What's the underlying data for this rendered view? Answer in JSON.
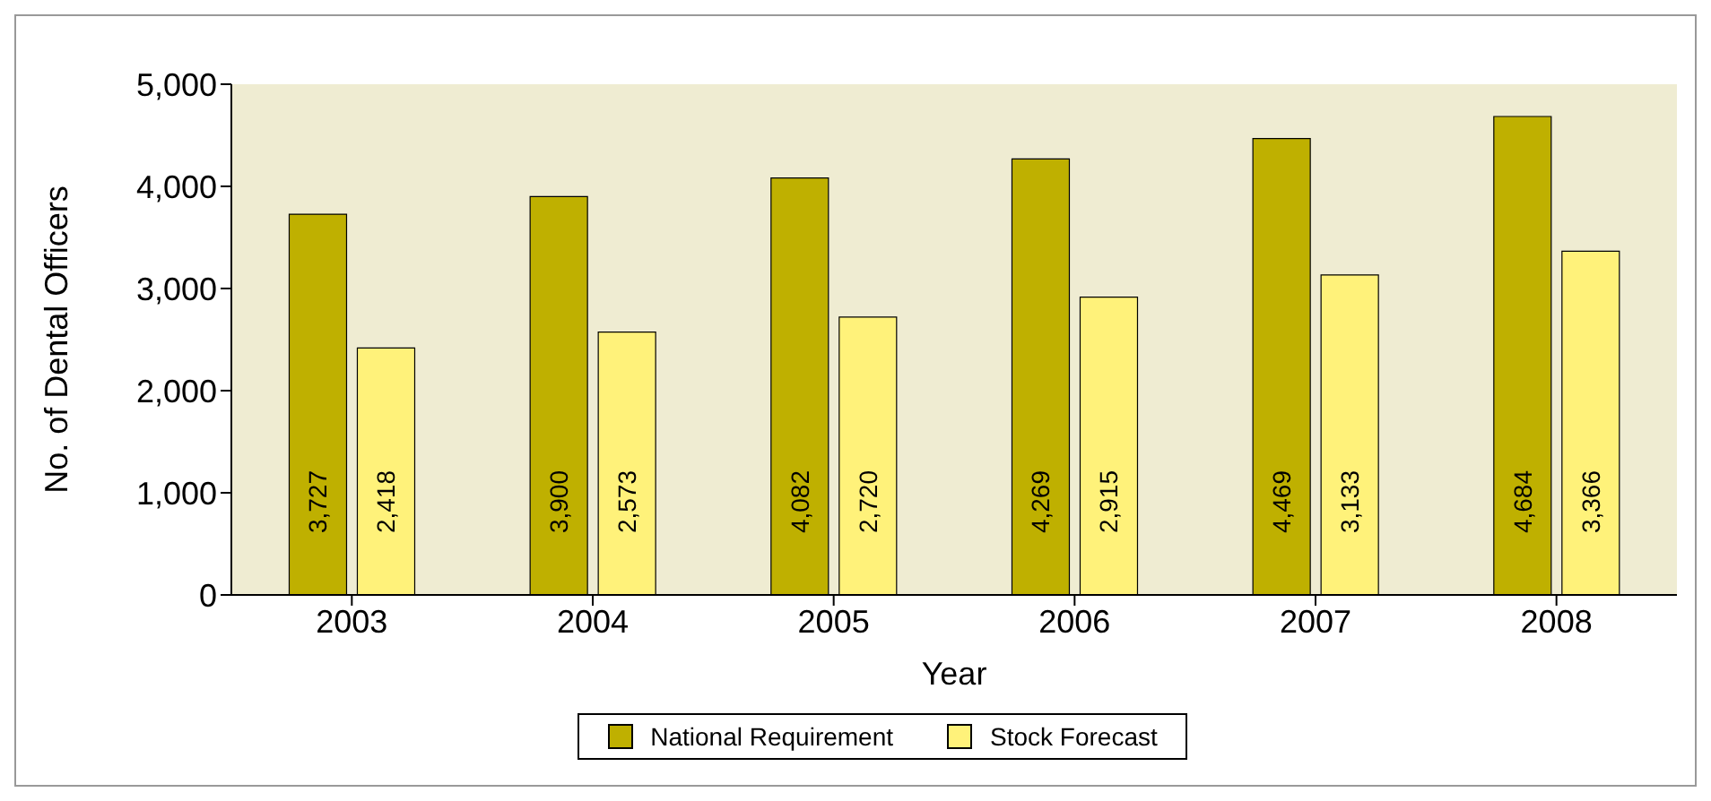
{
  "chart_data": {
    "type": "bar",
    "xlabel": "Year",
    "ylabel": "No. of Dental Officers",
    "categories": [
      "2003",
      "2004",
      "2005",
      "2006",
      "2007",
      "2008"
    ],
    "series": [
      {
        "name": "National Requirement",
        "color": "#bfb000",
        "values": [
          3727,
          3900,
          4082,
          4269,
          4469,
          4684
        ],
        "value_labels": [
          "3,727",
          "3,900",
          "4,082",
          "4,269",
          "4,469",
          "4,684"
        ]
      },
      {
        "name": "Stock Forecast",
        "color": "#fff27a",
        "values": [
          2418,
          2573,
          2720,
          2915,
          3133,
          3366
        ],
        "value_labels": [
          "2,418",
          "2,573",
          "2,720",
          "2,915",
          "3,133",
          "3,366"
        ]
      }
    ],
    "ylim": [
      0,
      5000
    ],
    "yticks": [
      0,
      {
        "value": 1000,
        "label": "1,000"
      },
      {
        "value": 2000,
        "label": "2,000"
      },
      {
        "value": 3000,
        "label": "3,000"
      },
      {
        "value": 4000,
        "label": "4,000"
      },
      {
        "value": 5000,
        "label": "5,000"
      }
    ],
    "grid": false,
    "legend": "bottom"
  }
}
